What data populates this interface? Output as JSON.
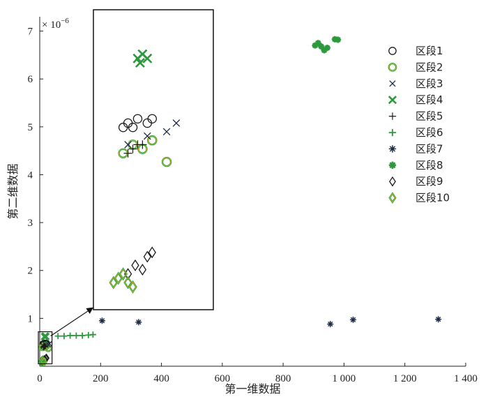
{
  "chart_data": {
    "type": "scatter",
    "xlabel": "第一维数据",
    "ylabel": "第二维数据",
    "xlim": [
      0,
      1400
    ],
    "ylim": [
      0,
      7.3
    ],
    "y_scale_label": "× 10",
    "y_scale_exponent": "−6",
    "x_ticks": [
      {
        "value": 0,
        "label": "0"
      },
      {
        "value": 200,
        "label": "200"
      },
      {
        "value": 400,
        "label": "400"
      },
      {
        "value": 600,
        "label": "600"
      },
      {
        "value": 800,
        "label": "800"
      },
      {
        "value": 1000,
        "label": "1 000"
      },
      {
        "value": 1200,
        "label": "1 200"
      },
      {
        "value": 1400,
        "label": "1 400"
      }
    ],
    "y_ticks": [
      {
        "value": 1,
        "label": "1"
      },
      {
        "value": 2,
        "label": "2"
      },
      {
        "value": 3,
        "label": "3"
      },
      {
        "value": 4,
        "label": "4"
      },
      {
        "value": 5,
        "label": "5"
      },
      {
        "value": 6,
        "label": "6"
      },
      {
        "value": 7,
        "label": "7"
      }
    ],
    "legend_position": "top-right",
    "grid": false,
    "colors": {
      "black": "#1a1a1a",
      "navy": "#1c2a44",
      "green": "#2c9a3c",
      "yellow": "#e8c020"
    },
    "series": [
      {
        "name": "区段1",
        "marker": "circle",
        "color": "#1a1a1a",
        "points": [
          [
            10,
            0.46
          ],
          [
            12,
            0.47
          ],
          [
            14,
            0.46
          ],
          [
            16,
            0.48
          ],
          [
            20,
            0.47
          ],
          [
            22,
            0.48
          ]
        ]
      },
      {
        "name": "区段2",
        "marker": "circle-green",
        "color": "#2c9a3c",
        "points": [
          [
            10,
            0.4
          ],
          [
            14,
            0.42
          ],
          [
            18,
            0.41
          ],
          [
            22,
            0.43
          ],
          [
            28,
            0.38
          ]
        ]
      },
      {
        "name": "区段3",
        "marker": "x",
        "color": "#1c2a44",
        "points": [
          [
            12,
            0.42
          ],
          [
            20,
            0.44
          ],
          [
            28,
            0.45
          ],
          [
            32,
            0.47
          ]
        ]
      },
      {
        "name": "区段4",
        "marker": "x-green",
        "color": "#2c9a3c",
        "points": [
          [
            16,
            0.62
          ],
          [
            18,
            0.63
          ],
          [
            20,
            0.62
          ],
          [
            17,
            0.61
          ]
        ]
      },
      {
        "name": "区段5",
        "marker": "plus",
        "color": "#1a1a1a",
        "points": [
          [
            12,
            0.4
          ],
          [
            14,
            0.41
          ],
          [
            16,
            0.42
          ],
          [
            18,
            0.42
          ]
        ]
      },
      {
        "name": "区段6",
        "marker": "plus-green",
        "color": "#2c9a3c",
        "points": [
          [
            60,
            0.63
          ],
          [
            80,
            0.63
          ],
          [
            100,
            0.64
          ],
          [
            120,
            0.64
          ],
          [
            140,
            0.64
          ],
          [
            160,
            0.65
          ],
          [
            175,
            0.66
          ]
        ]
      },
      {
        "name": "区段7",
        "marker": "asterisk",
        "color": "#1c2a44",
        "points": [
          [
            205,
            0.95
          ],
          [
            325,
            0.92
          ],
          [
            955,
            0.88
          ],
          [
            1030,
            0.97
          ],
          [
            1310,
            0.98
          ]
        ]
      },
      {
        "name": "区段8",
        "marker": "asterisk-green",
        "color": "#2c9a3c",
        "points": [
          [
            905,
            6.7
          ],
          [
            915,
            6.75
          ],
          [
            925,
            6.68
          ],
          [
            935,
            6.6
          ],
          [
            945,
            6.65
          ],
          [
            970,
            6.83
          ],
          [
            980,
            6.82
          ]
        ]
      },
      {
        "name": "区段9",
        "marker": "diamond",
        "color": "#1a1a1a",
        "points": [
          [
            12,
            0.12
          ],
          [
            15,
            0.14
          ],
          [
            18,
            0.13
          ],
          [
            20,
            0.16
          ],
          [
            22,
            0.17
          ]
        ]
      },
      {
        "name": "区段10",
        "marker": "diamond-green",
        "color": "#2c9a3c",
        "points": [
          [
            6,
            0.1
          ],
          [
            8,
            0.11
          ],
          [
            10,
            0.12
          ],
          [
            12,
            0.1
          ],
          [
            14,
            0.09
          ]
        ]
      }
    ],
    "annotations": [
      {
        "type": "zoom-box",
        "data_region": {
          "x": [
            0,
            45
          ],
          "y": [
            0.05,
            0.72
          ]
        }
      }
    ]
  }
}
